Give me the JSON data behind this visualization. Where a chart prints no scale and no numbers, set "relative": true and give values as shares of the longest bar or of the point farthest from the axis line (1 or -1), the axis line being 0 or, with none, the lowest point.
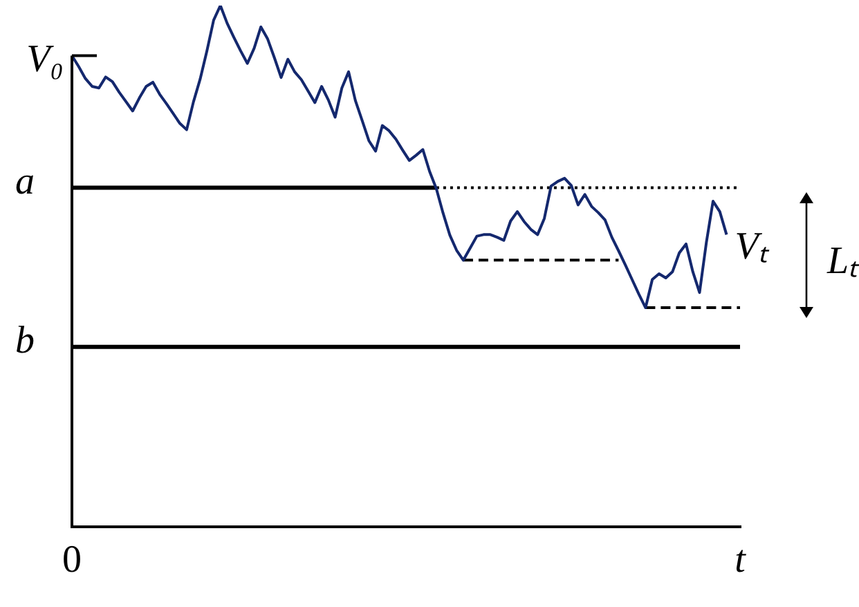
{
  "chart_data": {
    "type": "line",
    "relative": true,
    "legend": false,
    "grid": false,
    "tick_labels": "x",
    "marker": "none",
    "categories": [
      "0",
      null,
      null,
      null,
      null,
      null,
      null,
      null,
      null,
      null,
      null,
      null,
      null,
      null,
      null,
      null,
      null,
      null,
      null,
      null,
      null,
      null,
      null,
      null,
      null,
      null,
      null,
      null,
      null,
      null,
      null,
      null,
      null,
      null,
      null,
      null,
      null,
      null,
      null,
      null,
      null,
      null,
      null,
      null,
      null,
      null,
      null,
      null,
      null,
      null,
      null,
      null,
      null,
      null,
      null,
      null,
      null,
      null,
      null,
      null,
      null,
      null,
      null,
      null,
      null,
      null,
      null,
      null,
      null,
      null,
      null,
      null,
      null,
      null,
      null,
      null,
      null,
      null,
      null,
      null,
      null,
      null,
      null,
      null,
      null,
      null,
      null,
      null,
      null,
      null,
      null,
      null,
      null,
      null,
      null,
      null,
      null,
      null,
      null,
      "t"
    ],
    "series": [
      {
        "color": "#14286e",
        "line_style": "solid",
        "values": [
          0.904,
          0.883,
          0.86,
          0.845,
          0.842,
          0.863,
          0.854,
          0.834,
          0.816,
          0.798,
          0.823,
          0.845,
          0.853,
          0.83,
          0.812,
          0.793,
          0.774,
          0.762,
          0.815,
          0.859,
          0.913,
          0.972,
          1,
          0.966,
          0.939,
          0.913,
          0.889,
          0.918,
          0.959,
          0.936,
          0.9,
          0.862,
          0.897,
          0.873,
          0.858,
          0.836,
          0.814,
          0.845,
          0.819,
          0.786,
          0.842,
          0.873,
          0.818,
          0.78,
          0.741,
          0.721,
          0.77,
          0.76,
          0.744,
          0.723,
          0.703,
          0.713,
          0.724,
          0.682,
          0.649,
          0.602,
          0.56,
          0.531,
          0.512,
          0.535,
          0.558,
          0.561,
          0.561,
          0.556,
          0.55,
          0.587,
          0.605,
          0.586,
          0.571,
          0.561,
          0.592,
          0.654,
          0.663,
          0.669,
          0.655,
          0.618,
          0.638,
          0.615,
          0.603,
          0.589,
          0.556,
          0.53,
          0.503,
          0.475,
          0.447,
          0.421,
          0.475,
          0.486,
          0.478,
          0.49,
          0.526,
          0.543,
          0.49,
          0.45,
          0.545,
          0.625,
          0.605,
          0.561,
          null,
          null
        ]
      },
      {
        "color": "#000000",
        "line_style": "dotted",
        "values": [
          null,
          null,
          null,
          null,
          null,
          null,
          null,
          null,
          null,
          null,
          null,
          null,
          null,
          null,
          null,
          null,
          null,
          null,
          null,
          null,
          null,
          null,
          null,
          null,
          null,
          null,
          null,
          null,
          null,
          null,
          null,
          null,
          null,
          null,
          null,
          null,
          null,
          null,
          null,
          null,
          null,
          null,
          null,
          null,
          null,
          null,
          null,
          null,
          null,
          null,
          null,
          null,
          null,
          null,
          0.651,
          0.651,
          0.651,
          0.651,
          0.651,
          0.651,
          0.651,
          0.651,
          0.651,
          0.651,
          0.651,
          0.651,
          0.651,
          0.651,
          0.651,
          0.651,
          0.651,
          0.651,
          0.651,
          0.651,
          0.651,
          0.651,
          0.651,
          0.651,
          0.651,
          0.651,
          0.651,
          0.651,
          0.651,
          0.651,
          0.651,
          0.651,
          0.651,
          0.651,
          0.651,
          0.651,
          0.651,
          0.651,
          0.651,
          0.651,
          0.651,
          0.651,
          0.651,
          0.651,
          0.651,
          0.651
        ]
      },
      {
        "color": "#000000",
        "line_style": "dashed",
        "values": [
          null,
          null,
          null,
          null,
          null,
          null,
          null,
          null,
          null,
          null,
          null,
          null,
          null,
          null,
          null,
          null,
          null,
          null,
          null,
          null,
          null,
          null,
          null,
          null,
          null,
          null,
          null,
          null,
          null,
          null,
          null,
          null,
          null,
          null,
          null,
          null,
          null,
          null,
          null,
          null,
          null,
          null,
          null,
          null,
          null,
          null,
          null,
          null,
          null,
          null,
          null,
          null,
          null,
          null,
          null,
          null,
          null,
          null,
          0.512,
          0.512,
          0.512,
          0.512,
          0.512,
          0.512,
          0.512,
          0.512,
          0.512,
          0.512,
          0.512,
          0.512,
          0.512,
          0.512,
          0.512,
          0.512,
          0.512,
          0.512,
          0.512,
          0.512,
          0.512,
          0.512,
          0.512,
          0.512,
          null,
          null,
          null,
          null,
          null,
          null,
          null,
          null,
          null,
          null,
          null,
          null,
          null,
          null,
          null,
          null,
          null,
          null
        ]
      },
      {
        "color": "#000000",
        "line_style": "dashed",
        "values": [
          null,
          null,
          null,
          null,
          null,
          null,
          null,
          null,
          null,
          null,
          null,
          null,
          null,
          null,
          null,
          null,
          null,
          null,
          null,
          null,
          null,
          null,
          null,
          null,
          null,
          null,
          null,
          null,
          null,
          null,
          null,
          null,
          null,
          null,
          null,
          null,
          null,
          null,
          null,
          null,
          null,
          null,
          null,
          null,
          null,
          null,
          null,
          null,
          null,
          null,
          null,
          null,
          null,
          null,
          null,
          null,
          null,
          null,
          null,
          null,
          null,
          null,
          null,
          null,
          null,
          null,
          null,
          null,
          null,
          null,
          null,
          null,
          null,
          null,
          null,
          null,
          null,
          null,
          null,
          null,
          null,
          null,
          null,
          null,
          null,
          0.421,
          0.421,
          0.421,
          0.421,
          0.421,
          0.421,
          0.421,
          0.421,
          0.421,
          0.421,
          0.421,
          0.421,
          0.421,
          0.421,
          0.421
        ]
      }
    ],
    "ref_lines": [
      {
        "axis": "y",
        "value": 0.651,
        "label": "a",
        "color": "#000000"
      },
      {
        "axis": "y",
        "value": 0.346,
        "label": "b",
        "color": "#000000"
      }
    ],
    "annotations": [
      {
        "text": "V₀",
        "x": "0",
        "y": 0.904
      },
      "Vₜ",
      "Lₜ"
    ]
  }
}
